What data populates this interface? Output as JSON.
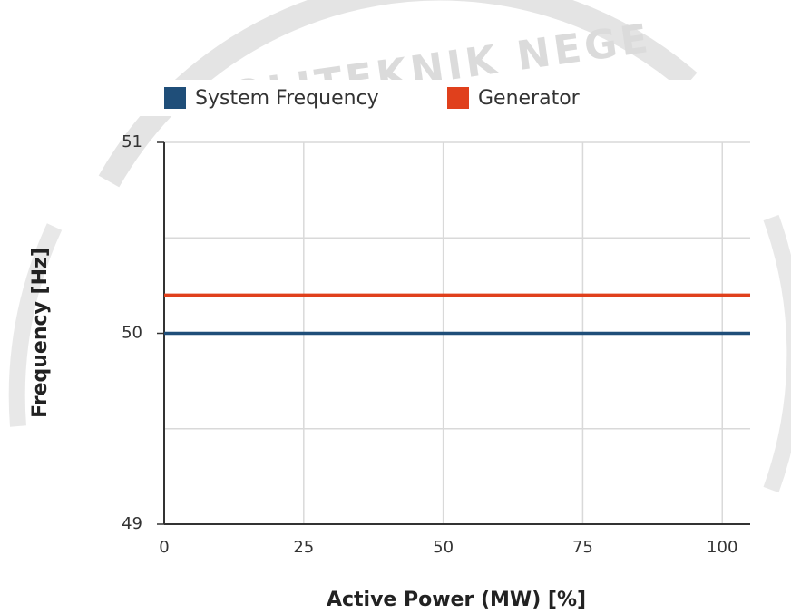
{
  "chart_data": {
    "type": "line",
    "watermark": "OLITEKNIK NEGE",
    "x": [
      0,
      105
    ],
    "series": [
      {
        "name": "System Frequency",
        "color": "#1f4e79",
        "values": [
          50,
          50
        ]
      },
      {
        "name": "Generator",
        "color": "#e0401c",
        "values": [
          50.2,
          50.2
        ]
      }
    ],
    "xlim": [
      0,
      105
    ],
    "xticks": [
      0,
      25,
      50,
      75,
      100
    ],
    "ylim": [
      49,
      51
    ],
    "yticks": [
      49,
      50,
      51
    ],
    "yminor": [
      49.5,
      50.5
    ],
    "xlabel": "Active Power (MW) [%]",
    "ylabel": "Frequency [Hz]",
    "grid": true,
    "legend": "top"
  }
}
